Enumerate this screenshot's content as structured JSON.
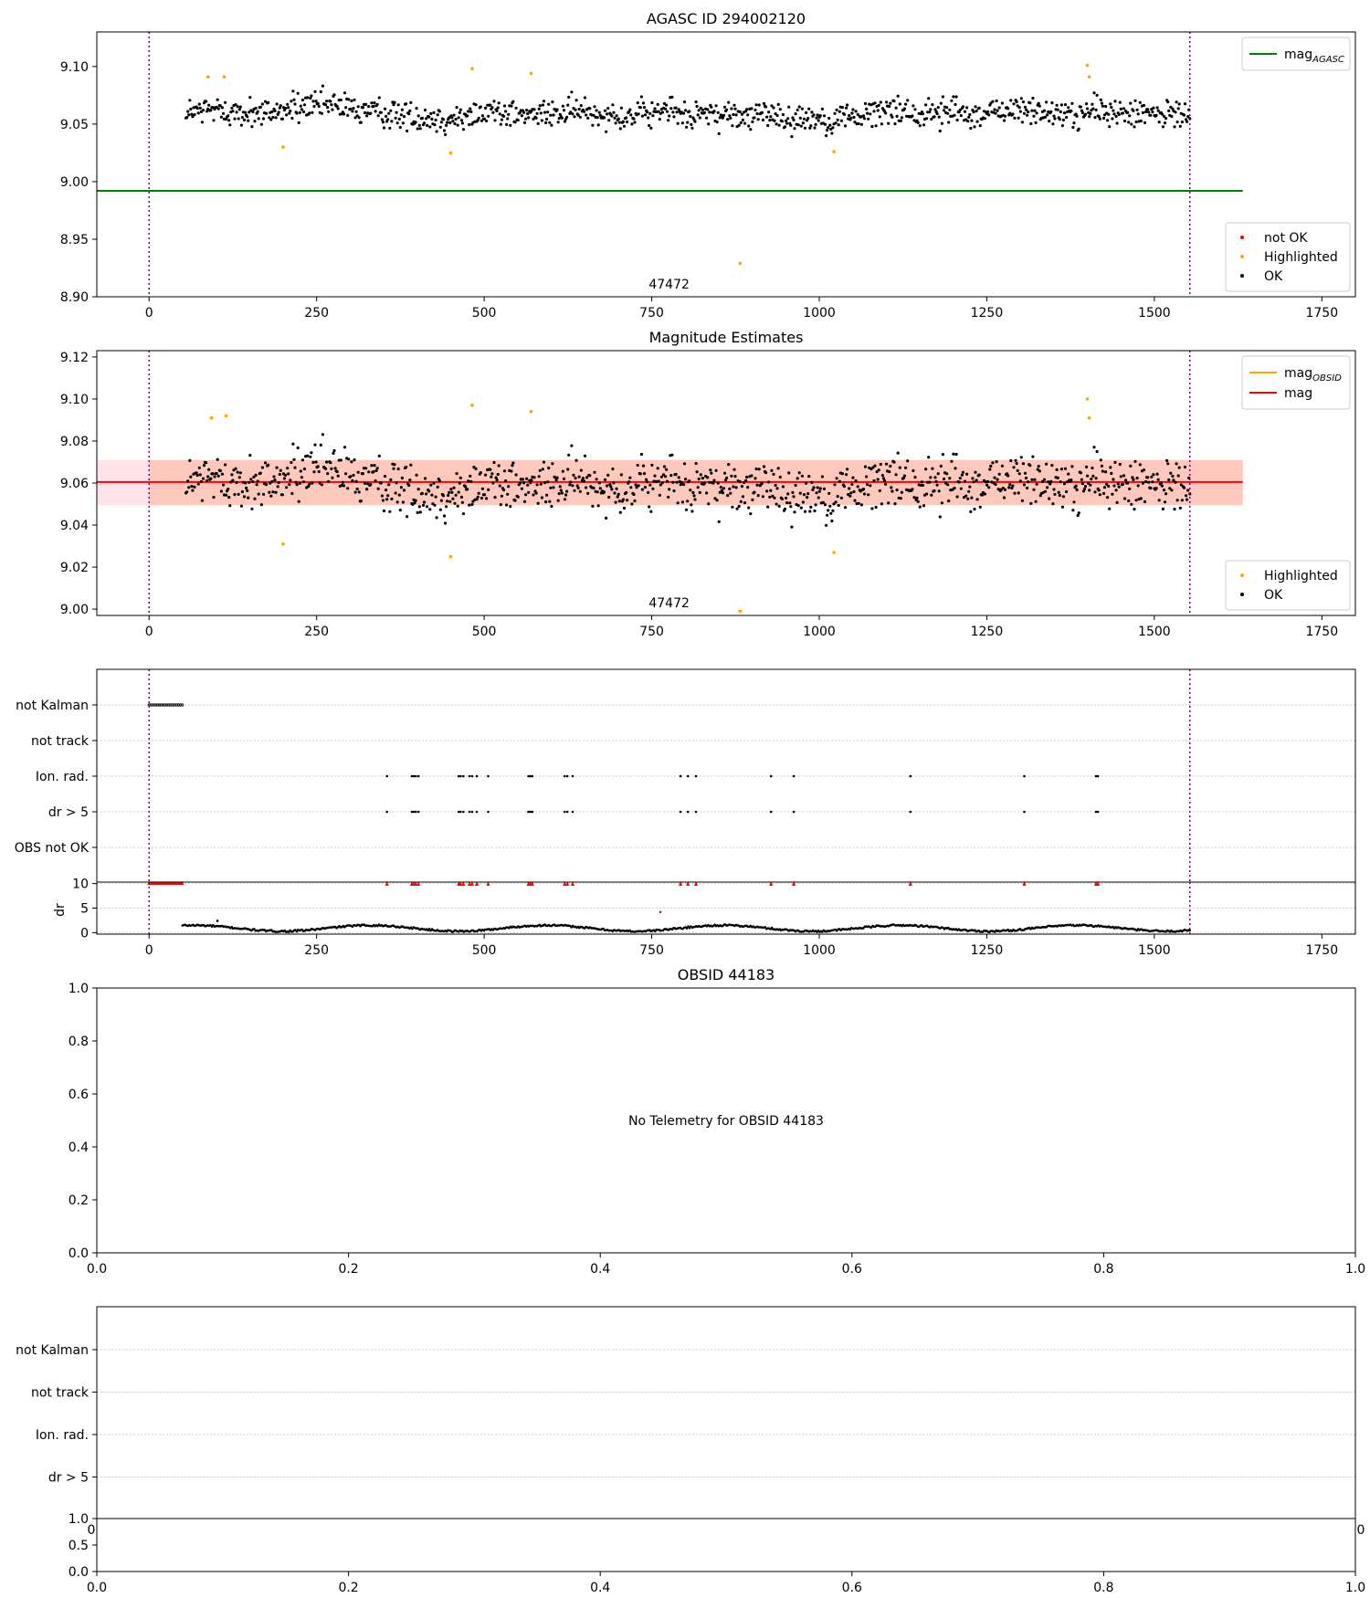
{
  "colors": {
    "ok": "#000000",
    "highlighted": "#ffa500",
    "not_ok": "#ff0000",
    "mag_agasc": "#008000",
    "mag_obsid": "#ffa500",
    "mag": "#ff0000",
    "obs_boundary": "#800080",
    "band_outer": "#ffc0cb",
    "band_inner": "#ffa07a"
  },
  "chart_data": [
    {
      "type": "scatter",
      "title": "AGASC ID 294002120",
      "xlabel": "",
      "ylabel": "",
      "xlim": [
        -78,
        1800
      ],
      "ylim": [
        8.9,
        9.13
      ],
      "x_ticks": [
        0,
        250,
        500,
        750,
        1000,
        1250,
        1500,
        1750
      ],
      "y_ticks": [
        8.9,
        8.95,
        9.0,
        9.05,
        9.1
      ],
      "y_tick_labels": [
        "8.90",
        "8.95",
        "9.00",
        "9.05",
        "9.10"
      ],
      "grid": false,
      "obs_boundaries": [
        0,
        1553
      ],
      "obs_label": {
        "text": "47472",
        "x": 776,
        "y": 8.9
      },
      "reference_lines": [
        {
          "name": "mag_AGASC",
          "y": 8.992,
          "x_range": [
            -78,
            1632
          ]
        }
      ],
      "legend_lines": {
        "placement": "top-right",
        "entries": [
          {
            "base": "mag",
            "sub": "AGASC",
            "color_key": "mag_agasc"
          }
        ]
      },
      "legend_points": {
        "placement": "lower-right",
        "entries": [
          {
            "label": "not OK",
            "color_key": "not_ok"
          },
          {
            "label": "Highlighted",
            "color_key": "highlighted"
          },
          {
            "label": "OK",
            "color_key": "ok"
          }
        ]
      },
      "series": [
        {
          "name": "OK",
          "generator": {
            "x_range": [
              55,
              1553
            ],
            "count": 1050,
            "center": 9.06,
            "spread": 0.011
          }
        },
        {
          "name": "Highlighted",
          "points": [
            [
              88,
              9.091
            ],
            [
              112,
              9.091
            ],
            [
              200,
              9.03
            ],
            [
              450,
              9.025
            ],
            [
              482,
              9.098
            ],
            [
              570,
              9.094
            ],
            [
              882,
              8.929
            ],
            [
              1022,
              9.026
            ],
            [
              1400,
              9.101
            ],
            [
              1403,
              9.091
            ]
          ]
        }
      ]
    },
    {
      "type": "scatter",
      "title": "Magnitude Estimates",
      "xlabel": "",
      "ylabel": "",
      "xlim": [
        -78,
        1800
      ],
      "ylim": [
        8.997,
        9.123
      ],
      "x_ticks": [
        0,
        250,
        500,
        750,
        1000,
        1250,
        1500,
        1750
      ],
      "y_ticks": [
        9.0,
        9.02,
        9.04,
        9.06,
        9.08,
        9.1,
        9.12
      ],
      "y_tick_labels": [
        "9.00",
        "9.02",
        "9.04",
        "9.06",
        "9.08",
        "9.10",
        "9.12"
      ],
      "grid": false,
      "obs_boundaries": [
        0,
        1553
      ],
      "obs_label": {
        "text": "47472",
        "x": 776,
        "y": 8.997
      },
      "reference_lines": [
        {
          "name": "mag",
          "y": 9.0605,
          "x_range": [
            -78,
            1632
          ]
        }
      ],
      "bands": [
        {
          "name": "mag",
          "y_range": [
            9.0495,
            9.071
          ],
          "x_range": [
            -78,
            1632
          ],
          "color_key": "band_outer"
        },
        {
          "name": "mag_OBSID",
          "y_range": [
            9.0495,
            9.071
          ],
          "x_range": [
            0,
            1632
          ],
          "color_key": "band_inner"
        }
      ],
      "legend_lines": {
        "placement": "top-right",
        "entries": [
          {
            "base": "mag",
            "sub": "OBSID",
            "color_key": "mag_obsid"
          },
          {
            "base": "mag",
            "sub": "",
            "color_key": "mag"
          }
        ]
      },
      "legend_points": {
        "placement": "lower-right",
        "entries": [
          {
            "label": "Highlighted",
            "color_key": "highlighted"
          },
          {
            "label": "OK",
            "color_key": "ok"
          }
        ]
      },
      "series": [
        {
          "name": "OK",
          "generator": {
            "x_range": [
              55,
              1553
            ],
            "count": 1050,
            "center": 9.06,
            "spread": 0.011
          }
        },
        {
          "name": "Highlighted",
          "points": [
            [
              93,
              9.091
            ],
            [
              115,
              9.092
            ],
            [
              200,
              9.031
            ],
            [
              450,
              9.025
            ],
            [
              482,
              9.097
            ],
            [
              570,
              9.094
            ],
            [
              1022,
              9.027
            ],
            [
              1400,
              9.1
            ],
            [
              1403,
              9.091
            ]
          ]
        }
      ]
    },
    {
      "type": "scatter",
      "title": "",
      "xlabel": "",
      "ylabel": "",
      "xlim": [
        -78,
        1800
      ],
      "categories": [
        "not Kalman",
        "not track",
        "Ion. rad.",
        "dr > 5",
        "OBS not OK"
      ],
      "grid": true,
      "obs_boundaries": [
        0,
        1553
      ],
      "flags": {
        "not Kalman": {
          "ranges": [
            [
              0,
              50
            ]
          ]
        },
        "not track": {
          "ranges": []
        },
        "Ion. rad.": {
          "points": [
            355,
            392,
            395,
            398,
            402,
            462,
            465,
            469,
            478,
            482,
            489,
            506,
            566,
            569,
            572,
            620,
            624,
            632,
            793,
            804,
            816,
            928,
            962,
            1136,
            1306,
            1413,
            1416
          ]
        },
        "dr > 5": {
          "points": [
            355,
            392,
            395,
            398,
            402,
            462,
            465,
            469,
            478,
            482,
            489,
            506,
            566,
            569,
            572,
            620,
            624,
            632,
            793,
            804,
            816,
            928,
            962,
            1136,
            1306,
            1413,
            1416
          ]
        },
        "OBS not OK": {
          "ranges": []
        }
      }
    },
    {
      "type": "line",
      "title": "",
      "xlabel": "",
      "ylabel": "dr",
      "xlim": [
        -78,
        1800
      ],
      "ylim": [
        -0.3,
        10.3
      ],
      "x_ticks": [
        0,
        250,
        500,
        750,
        1000,
        1250,
        1500,
        1750
      ],
      "y_ticks": [
        0,
        5,
        10
      ],
      "grid": true,
      "obs_boundaries": [
        0,
        1553
      ],
      "clipped_markers": {
        "ranges": [
          [
            0,
            50
          ]
        ],
        "points": [
          355,
          392,
          395,
          398,
          402,
          462,
          465,
          469,
          478,
          482,
          489,
          506,
          566,
          569,
          572,
          620,
          624,
          632,
          793,
          804,
          816,
          928,
          962,
          1136,
          1306,
          1413,
          1416
        ]
      },
      "outliers": [
        [
          102,
          2.4
        ],
        [
          763,
          4.2
        ]
      ],
      "series": [
        {
          "name": "dr",
          "generator": {
            "x_range": [
              50,
              1553
            ],
            "count": 760,
            "mean": 0.9,
            "amp": 0.8
          }
        }
      ]
    },
    {
      "type": "scatter",
      "title": "OBSID 44183",
      "xlabel": "",
      "ylabel": "",
      "xlim": [
        0,
        1
      ],
      "ylim": [
        0,
        1
      ],
      "x_ticks": [
        0,
        0.2,
        0.4,
        0.6,
        0.8,
        1.0
      ],
      "x_tick_labels": [
        "0.0",
        "0.2",
        "0.4",
        "0.6",
        "0.8",
        "1.0"
      ],
      "y_ticks": [
        0,
        0.2,
        0.4,
        0.6,
        0.8,
        1.0
      ],
      "y_tick_labels": [
        "0.0",
        "0.2",
        "0.4",
        "0.6",
        "0.8",
        "1.0"
      ],
      "annotation": "No Telemetry for OBSID 44183",
      "grid": false
    },
    {
      "type": "scatter",
      "title": "",
      "xlabel": "",
      "ylabel": "",
      "categories": [
        "not Kalman",
        "not track",
        "Ion. rad.",
        "dr > 5"
      ],
      "grid": true,
      "hidden_x_tick_labels": [
        "0",
        "0"
      ]
    },
    {
      "type": "scatter",
      "title": "",
      "xlabel": "",
      "ylabel": "",
      "xlim": [
        0,
        1
      ],
      "ylim": [
        0,
        1
      ],
      "x_ticks": [
        0,
        0.2,
        0.4,
        0.6,
        0.8,
        1.0
      ],
      "x_tick_labels": [
        "0.0",
        "0.2",
        "0.4",
        "0.6",
        "0.8",
        "1.0"
      ],
      "y_ticks": [
        0,
        0.5,
        1.0
      ],
      "y_tick_labels": [
        "0.0",
        "0.5",
        "1.0"
      ],
      "grid": false
    }
  ]
}
